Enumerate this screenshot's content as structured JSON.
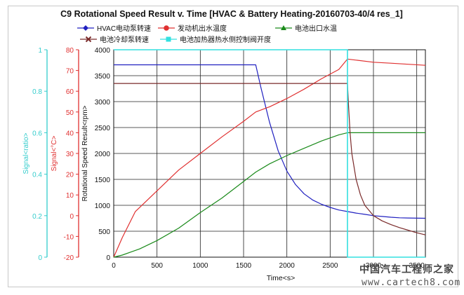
{
  "chart_data": {
    "type": "line",
    "title": "C9 Rotational Speed Result v. Time [HVAC & Battery Heating-20160703-40/4 res_1]",
    "xlabel": "Time<s>",
    "ylabel": "Rotational Speed Result<rpm>",
    "y2label": "Signal<°C>",
    "y3label": "Signal<ratio>",
    "xlim": [
      0,
      3600
    ],
    "ylim": [
      0,
      4000
    ],
    "y2lim": [
      -20,
      80
    ],
    "y3lim": [
      0,
      1
    ],
    "x_ticks": [
      "0",
      "500",
      "1000",
      "1500",
      "2000",
      "2500",
      "3000",
      "3500"
    ],
    "y_ticks": [
      "0",
      "500",
      "1000",
      "1500",
      "2000",
      "2500",
      "3000",
      "3500",
      "4000"
    ],
    "y2_ticks": [
      "-20",
      "-10",
      "0",
      "10",
      "20",
      "30",
      "40",
      "50",
      "60",
      "70",
      "80"
    ],
    "y3_ticks": [
      "0",
      "0.2",
      "0.4",
      "0.6",
      "0.8",
      "1"
    ],
    "grid": true,
    "legend_position": "top",
    "colors": {
      "y_axis": "#000000",
      "y2_axis": "#e03030",
      "y3_axis": "#33cccc"
    },
    "series": [
      {
        "name": "HVAC电动泵转速",
        "axis": "y",
        "color": "#2020c0",
        "marker": "diamond",
        "x": [
          0,
          1640,
          1700,
          1800,
          1900,
          2000,
          2100,
          2200,
          2300,
          2400,
          2500,
          2600,
          2700,
          2800,
          2900,
          3000,
          3100,
          3200,
          3300,
          3400,
          3600
        ],
        "y": [
          3710,
          3710,
          3270,
          2600,
          2050,
          1660,
          1400,
          1220,
          1100,
          1020,
          960,
          910,
          880,
          850,
          825,
          800,
          785,
          770,
          760,
          755,
          750
        ]
      },
      {
        "name": "发动机出水温度",
        "axis": "y2",
        "color": "#e03030",
        "marker": "circle",
        "x": [
          0,
          100,
          250,
          500,
          750,
          1000,
          1250,
          1500,
          1640,
          1800,
          2000,
          2200,
          2400,
          2600,
          2700,
          2800,
          3000,
          3200,
          3400,
          3600
        ],
        "y": [
          -20,
          -10.5,
          2,
          12,
          22,
          30,
          38,
          45.5,
          50,
          52.5,
          56.5,
          61,
          66,
          70.5,
          75.5,
          75,
          74,
          73.5,
          73,
          72.5
        ]
      },
      {
        "name": "电池出口水温",
        "axis": "y2",
        "color": "#1a8a1a",
        "marker": "triangle",
        "x": [
          0,
          100,
          200,
          300,
          500,
          750,
          1000,
          1250,
          1500,
          1640,
          1800,
          2000,
          2200,
          2400,
          2600,
          2700,
          3600
        ],
        "y": [
          -20,
          -19,
          -17.5,
          -16,
          -12,
          -6,
          1.5,
          8.5,
          16.5,
          21,
          25,
          29,
          32.5,
          36,
          39,
          40,
          40
        ]
      },
      {
        "name": "电池冷却泵转速",
        "axis": "y",
        "color": "#7a2a2a",
        "marker": "x",
        "x": [
          0,
          2700,
          2710,
          2730,
          2750,
          2800,
          2850,
          2900,
          3000,
          3100,
          3200,
          3300,
          3400,
          3500,
          3600
        ],
        "y": [
          3350,
          3350,
          3000,
          2400,
          2000,
          1500,
          1200,
          1000,
          800,
          700,
          630,
          570,
          520,
          470,
          430
        ]
      },
      {
        "name": "电池加热器热水侧控制阀开度",
        "axis": "y3",
        "color": "#33e0e0",
        "marker": "square",
        "x": [
          0,
          2700,
          2700,
          3600
        ],
        "y": [
          1,
          1,
          0,
          0
        ]
      }
    ]
  },
  "watermark": {
    "text": "中国汽车工程师之家",
    "url": "www.cartech8.com"
  }
}
